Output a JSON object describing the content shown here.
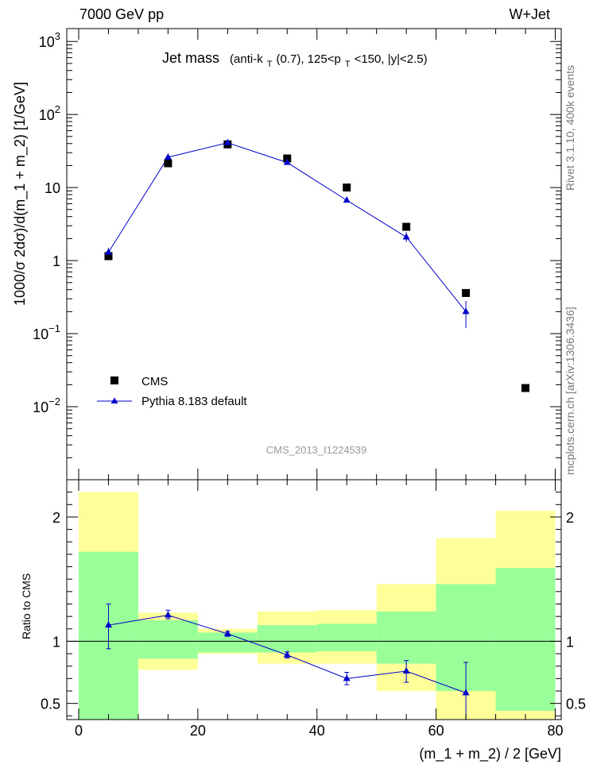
{
  "header": {
    "left_label": "7000 GeV pp",
    "right_label": "W+Jet"
  },
  "side_labels": {
    "rivet": "Rivet 3.1.10,  400k events",
    "mcplots": "mcplots.cern.ch [arXiv:1306.3436]"
  },
  "analysis_id": "CMS_2013_I1224539",
  "chart_data": [
    {
      "type": "scatter",
      "panel": "main",
      "title": "Jet mass",
      "title_detail": {
        "a": "(anti-k",
        "a_sub": "T",
        "b": "(0.7), 125<p",
        "b_sub": "T",
        "c": "<150, |y|<2.5)"
      },
      "ylabel": "1000/σ 2dσ)/d(m_1 + m_2) [1/GeV]",
      "yscale": "log",
      "ylim": [
        0.001,
        1500
      ],
      "xlim": [
        -2,
        81
      ],
      "y_ticks": [
        {
          "value": 1000,
          "base": "10",
          "exp": "3"
        },
        {
          "value": 100,
          "base": "10",
          "exp": "2"
        },
        {
          "value": 10,
          "base": "10",
          "exp": ""
        },
        {
          "value": 1,
          "base": "1",
          "exp": ""
        },
        {
          "value": 0.1,
          "base": "10",
          "exp": "−1"
        },
        {
          "value": 0.01,
          "base": "10",
          "exp": "−2"
        }
      ],
      "legend_position": "lower-left",
      "series": [
        {
          "name": "CMS",
          "style": "square-markers",
          "color": "#000000",
          "x": [
            5,
            15,
            25,
            35,
            45,
            55,
            65,
            75
          ],
          "y": [
            1.15,
            21.5,
            39,
            25,
            10,
            2.9,
            0.36,
            0.018
          ]
        },
        {
          "name": "Pythia 8.183 default",
          "style": "line-triangles",
          "color": "#0000cc",
          "x": [
            5,
            15,
            25,
            35,
            45,
            55,
            65
          ],
          "y": [
            1.3,
            26,
            41,
            22,
            6.7,
            2.1,
            0.2
          ],
          "y_err_low": [
            1.08,
            24.5,
            39,
            20.8,
            6.3,
            1.8,
            0.12
          ],
          "y_err_high": [
            1.5,
            27.5,
            43,
            23.2,
            7.1,
            2.45,
            0.28
          ]
        }
      ]
    },
    {
      "type": "bar",
      "panel": "ratio",
      "ylabel": "Ratio to CMS",
      "xlabel": "(m_1 + m_2) / 2 [GeV]",
      "ylim": [
        0.37,
        2.3
      ],
      "xlim": [
        -2,
        81
      ],
      "x_ticks": [
        0,
        20,
        40,
        60,
        80
      ],
      "y_ticks": [
        0.5,
        1,
        2
      ],
      "reference_line": 1,
      "bins": [
        0,
        10,
        20,
        30,
        40,
        50,
        60,
        70,
        80
      ],
      "band_green_low": [
        0.37,
        0.86,
        0.91,
        0.91,
        0.92,
        0.82,
        0.6,
        0.44
      ],
      "band_green_high": [
        1.72,
        1.17,
        1.07,
        1.13,
        1.14,
        1.24,
        1.46,
        1.59
      ],
      "band_yellow_low": [
        0.37,
        0.77,
        0.9,
        0.82,
        0.82,
        0.6,
        0.37,
        0.37
      ],
      "band_yellow_high": [
        2.2,
        1.23,
        1.1,
        1.24,
        1.25,
        1.46,
        1.83,
        2.05
      ],
      "series": [
        {
          "name": "Pythia 8.183 default",
          "color": "#0000cc",
          "x": [
            5,
            15,
            25,
            35,
            45,
            55,
            65
          ],
          "y": [
            1.13,
            1.21,
            1.06,
            0.89,
            0.7,
            0.76,
            0.585
          ],
          "y_err_low": [
            0.94,
            1.18,
            1.04,
            0.865,
            0.65,
            0.67,
            0.37
          ],
          "y_err_high": [
            1.3,
            1.25,
            1.08,
            0.915,
            0.75,
            0.845,
            0.83
          ]
        }
      ]
    }
  ]
}
